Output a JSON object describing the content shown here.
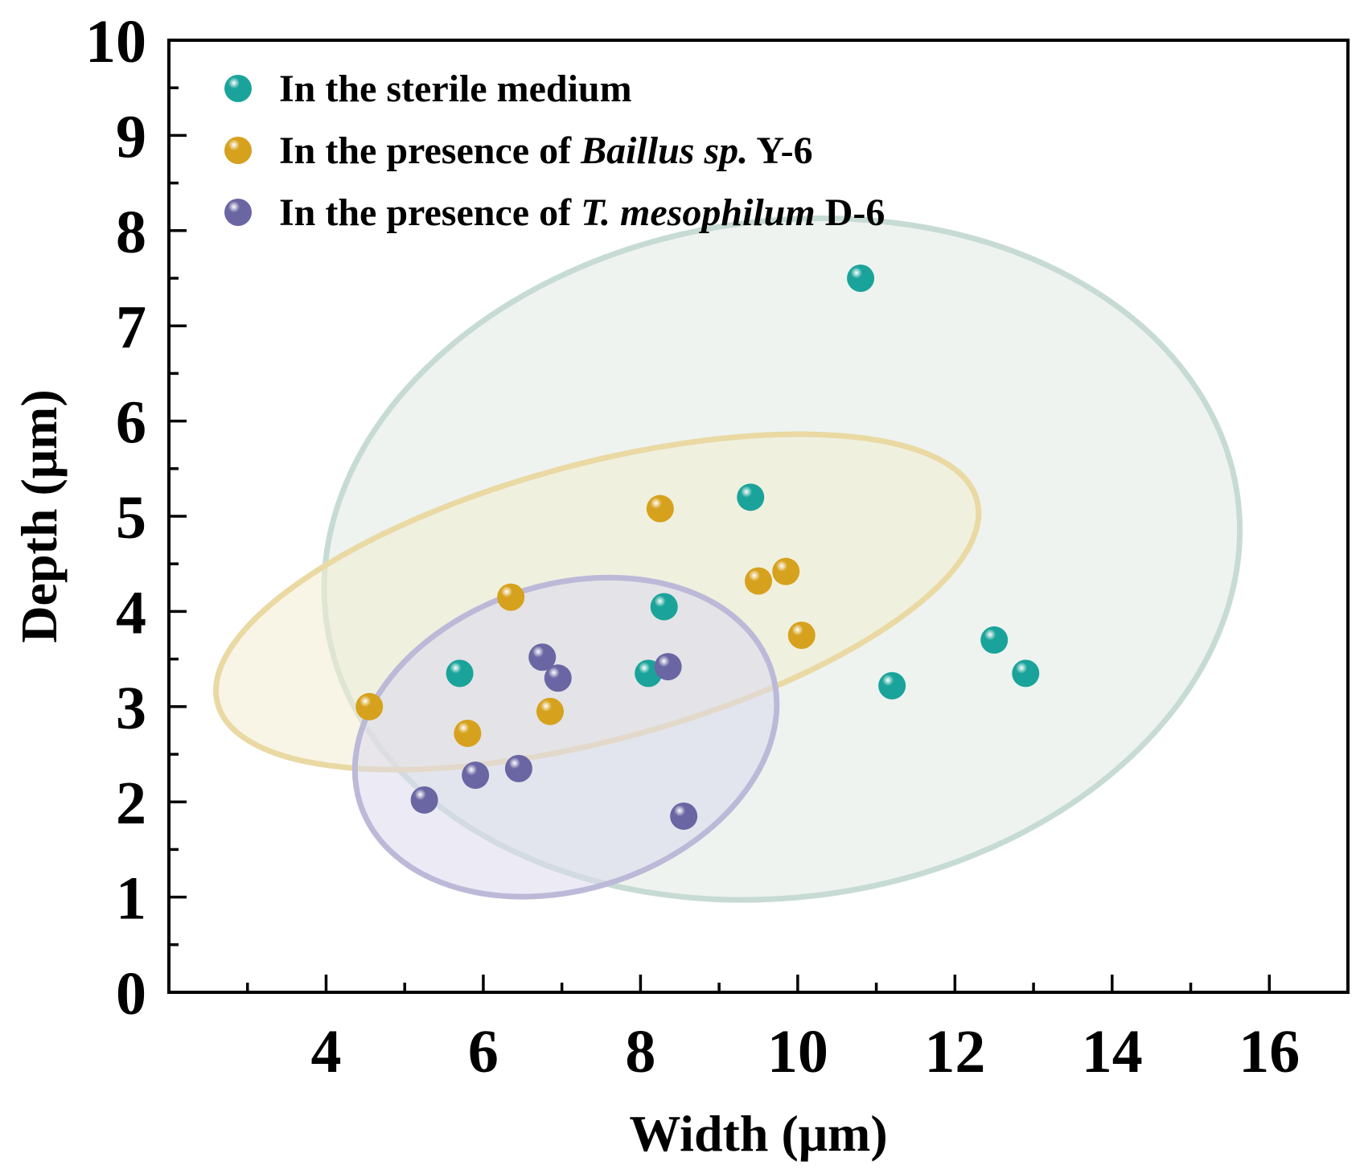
{
  "chart_data": {
    "type": "scatter",
    "title": "",
    "xlabel": "Width (μm)",
    "ylabel": "Depth (μm)",
    "xlim": [
      2,
      17
    ],
    "ylim": [
      0,
      10
    ],
    "x_ticks": [
      4,
      6,
      8,
      10,
      12,
      14,
      16
    ],
    "y_ticks": [
      0,
      1,
      2,
      3,
      4,
      5,
      6,
      7,
      8,
      9,
      10
    ],
    "legend_position": "top-left",
    "series": [
      {
        "name": "In the sterile medium",
        "legend_parts": [
          {
            "text": "In the sterile medium",
            "italic": false
          }
        ],
        "color": "#1aa39a",
        "points": [
          [
            10.8,
            7.5
          ],
          [
            9.4,
            5.2
          ],
          [
            8.3,
            4.05
          ],
          [
            5.7,
            3.35
          ],
          [
            8.1,
            3.35
          ],
          [
            11.2,
            3.22
          ],
          [
            12.5,
            3.7
          ],
          [
            12.9,
            3.35
          ]
        ],
        "ellipse": {
          "cx": 9.8,
          "cy": 4.55,
          "rx": 5.85,
          "ry": 3.55,
          "angle": 8,
          "fill": "#dde8e1",
          "fill_opacity": 0.5,
          "stroke": "#c7dbd5"
        }
      },
      {
        "name": "In the presence of Baillus sp. Y-6",
        "legend_parts": [
          {
            "text": "In the presence of ",
            "italic": false
          },
          {
            "text": "Baillus sp.",
            "italic": true
          },
          {
            "text": " Y-6",
            "italic": false
          }
        ],
        "color": "#d6a11c",
        "points": [
          [
            4.55,
            3.0
          ],
          [
            5.8,
            2.72
          ],
          [
            6.35,
            4.15
          ],
          [
            6.85,
            2.95
          ],
          [
            8.25,
            5.08
          ],
          [
            9.5,
            4.32
          ],
          [
            9.85,
            4.42
          ],
          [
            10.05,
            3.75
          ]
        ],
        "ellipse": {
          "cx": 7.45,
          "cy": 4.1,
          "rx": 5.0,
          "ry": 1.45,
          "angle": 15,
          "fill": "#f3ecd2",
          "fill_opacity": 0.55,
          "stroke": "#ead9a3"
        }
      },
      {
        "name": "In the presence of T. mesophilum D-6",
        "legend_parts": [
          {
            "text": "In the presence of ",
            "italic": false
          },
          {
            "text": "T. mesophilum",
            "italic": true
          },
          {
            "text": " D-6",
            "italic": false
          }
        ],
        "color": "#6a66a3",
        "points": [
          [
            5.25,
            2.02
          ],
          [
            5.9,
            2.28
          ],
          [
            6.45,
            2.35
          ],
          [
            6.75,
            3.52
          ],
          [
            6.95,
            3.3
          ],
          [
            8.35,
            3.42
          ],
          [
            8.55,
            1.85
          ]
        ],
        "ellipse": {
          "cx": 7.05,
          "cy": 2.68,
          "rx": 2.75,
          "ry": 1.6,
          "angle": 18,
          "fill": "#dad8ec",
          "fill_opacity": 0.55,
          "stroke": "#bcb9d8"
        }
      }
    ]
  }
}
